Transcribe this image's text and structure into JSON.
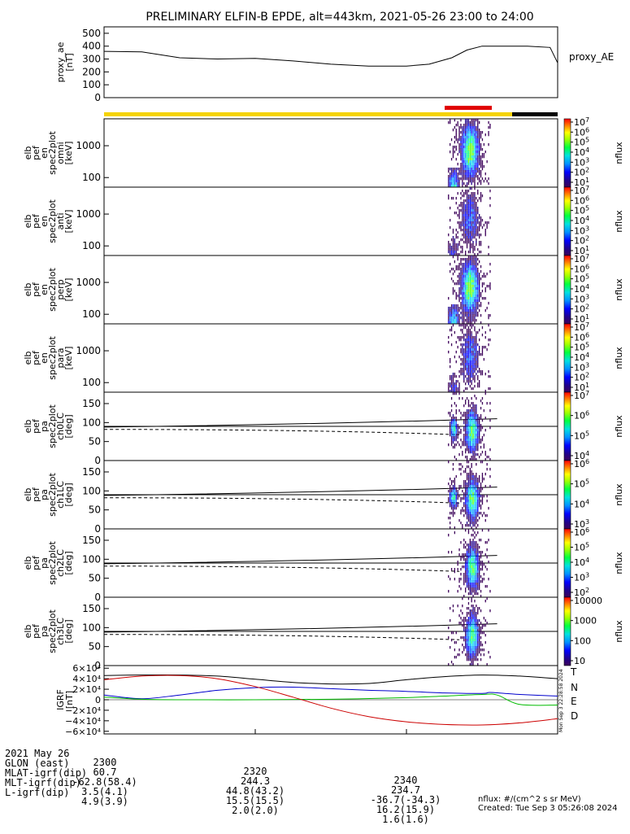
{
  "colors": {
    "sci_zone": "#f5d300",
    "sci_fast": "#e00000",
    "sci_end": "#000000",
    "comp_N": "#0000cc",
    "comp_E": "#00bb00",
    "comp_D": "#cc0000",
    "comp_T": "#000000"
  },
  "chart_data": {
    "type": "heatmap",
    "title": "PRELIMINARY ELFIN-B EPDE, alt=443km, 2021-05-26 23:00 to 24:00",
    "x_range_minutes": [
      2300,
      2400
    ],
    "x_ticks": [
      "2300",
      "2320",
      "2340"
    ],
    "panels": [
      {
        "id": "proxy_ae",
        "type": "line",
        "ylabel": [
          "proxy_ae",
          "[nT]"
        ],
        "right_label": "proxy_AE",
        "ylim": [
          0,
          550
        ],
        "yticks": [
          "500",
          "400",
          "300",
          "200",
          "100",
          "0"
        ],
        "x": [
          2300,
          2305,
          2310,
          2315,
          2320,
          2325,
          2330,
          2335,
          2340,
          2343,
          2346,
          2348,
          2350,
          2353,
          2356,
          2359,
          2360
        ],
        "y": [
          360,
          355,
          310,
          300,
          305,
          285,
          260,
          245,
          245,
          260,
          310,
          370,
          400,
          400,
          400,
          390,
          270
        ]
      },
      {
        "id": "omni",
        "type": "heatmap",
        "ylabel": [
          "elb",
          "pef",
          "en",
          "spec2plot",
          "omni",
          "[keV]"
        ],
        "yticks": [
          "1000",
          "100"
        ],
        "cbar_ticks": [
          "10^7",
          "10^6",
          "10^5",
          "10^4",
          "10^3",
          "10^2",
          "10^1"
        ],
        "cbar_label": "nflux"
      },
      {
        "id": "anti",
        "type": "heatmap",
        "ylabel": [
          "elb",
          "pef",
          "en",
          "spec2plot",
          "anti",
          "[keV]"
        ],
        "yticks": [
          "1000",
          "100"
        ],
        "cbar_ticks": [
          "10^7",
          "10^6",
          "10^5",
          "10^4",
          "10^3",
          "10^2",
          "10^1"
        ],
        "cbar_label": "nflux"
      },
      {
        "id": "perp",
        "type": "heatmap",
        "ylabel": [
          "elb",
          "pef",
          "en",
          "spec2plot",
          "perp",
          "[keV]"
        ],
        "yticks": [
          "1000",
          "100"
        ],
        "cbar_ticks": [
          "10^7",
          "10^6",
          "10^5",
          "10^4",
          "10^3",
          "10^2",
          "10^1"
        ],
        "cbar_label": "nflux"
      },
      {
        "id": "para",
        "type": "heatmap",
        "ylabel": [
          "elb",
          "pef",
          "en",
          "spec2plot",
          "para",
          "[keV]"
        ],
        "yticks": [
          "1000",
          "100"
        ],
        "cbar_ticks": [
          "10^7",
          "10^6",
          "10^5",
          "10^4",
          "10^3",
          "10^2",
          "10^1"
        ],
        "cbar_label": "nflux"
      },
      {
        "id": "ch0LC",
        "type": "heatmap",
        "ylabel": [
          "elb",
          "pef",
          "pa",
          "spec2plot",
          "ch0LC",
          "[deg]"
        ],
        "yticks": [
          "150",
          "100",
          "50",
          "0"
        ],
        "cbar_ticks": [
          "10^7",
          "10^6",
          "10^5",
          "10^4"
        ],
        "cbar_label": "nflux"
      },
      {
        "id": "ch1LC",
        "type": "heatmap",
        "ylabel": [
          "elb",
          "pef",
          "pa",
          "spec2plot",
          "ch1LC",
          "[deg]"
        ],
        "yticks": [
          "150",
          "100",
          "50",
          "0"
        ],
        "cbar_ticks": [
          "10^6",
          "10^5",
          "10^4",
          "10^3"
        ],
        "cbar_label": "nflux"
      },
      {
        "id": "ch2LC",
        "type": "heatmap",
        "ylabel": [
          "elb",
          "pef",
          "pa",
          "spec2plot",
          "ch2LC",
          "[deg]"
        ],
        "yticks": [
          "150",
          "100",
          "50",
          "0"
        ],
        "cbar_ticks": [
          "10^6",
          "10^5",
          "10^4",
          "10^3",
          "10^2"
        ],
        "cbar_label": "nflux"
      },
      {
        "id": "ch3LC",
        "type": "heatmap",
        "ylabel": [
          "elb",
          "pef",
          "pa",
          "spec2plot",
          "ch3LC",
          "[deg]"
        ],
        "yticks": [
          "150",
          "100",
          "50",
          "0"
        ],
        "cbar_ticks": [
          "10000",
          "1000",
          "100",
          "10"
        ],
        "cbar_label": "nflux"
      },
      {
        "id": "igrf",
        "type": "line",
        "ylabel": [
          "IGRF",
          "[nT]"
        ],
        "ylim": [
          -65000,
          65000
        ],
        "yticks": [
          "6×10⁴",
          "4×10⁴",
          "2×10⁴",
          "0",
          "−2×10⁴",
          "−4×10⁴",
          "−6×10⁴"
        ],
        "series": [
          {
            "name": "T",
            "x": [
              2300,
              2305,
              2310,
              2315,
              2320,
              2325,
              2330,
              2335,
              2340,
              2345,
              2350,
              2355,
              2360
            ],
            "y": [
              46000,
              47000,
              47000,
              45000,
              39000,
              33000,
              30000,
              31000,
              38000,
              44000,
              47000,
              45000,
              40000
            ]
          },
          {
            "name": "N",
            "x": [
              2300,
              2305,
              2310,
              2315,
              2320,
              2325,
              2330,
              2335,
              2340,
              2345,
              2350,
              2351,
              2353,
              2355,
              2360
            ],
            "y": [
              9000,
              2000,
              9000,
              18000,
              23000,
              24000,
              21000,
              18000,
              16000,
              13000,
              12000,
              14000,
              12000,
              10000,
              7000
            ]
          },
          {
            "name": "E",
            "x": [
              2300,
              2305,
              2310,
              2320,
              2330,
              2340,
              2345,
              2350,
              2352,
              2355,
              2360
            ],
            "y": [
              5000,
              1000,
              0,
              0,
              1000,
              4000,
              7000,
              10000,
              9000,
              -9000,
              -10000
            ]
          },
          {
            "name": "D",
            "x": [
              2300,
              2305,
              2310,
              2315,
              2320,
              2325,
              2330,
              2335,
              2340,
              2345,
              2350,
              2355,
              2360
            ],
            "y": [
              38000,
              45000,
              46000,
              40000,
              25000,
              5000,
              -16000,
              -32000,
              -42000,
              -47000,
              -48000,
              -44000,
              -36000
            ]
          }
        ]
      }
    ]
  },
  "footer": {
    "date_label": "2021 May 26",
    "rows": [
      {
        "label": "2021 May 26",
        "values": [
          "2300",
          "2320",
          "2340"
        ]
      },
      {
        "label": "GLON (east)",
        "values": [
          "60.7",
          "244.3",
          "234.7"
        ]
      },
      {
        "label": "MLAT-igrf(dip)",
        "values": [
          "-62.8(58.4)",
          "44.8(43.2)",
          "-36.7(-34.3)"
        ]
      },
      {
        "label": "MLT-igrf(dip)",
        "values": [
          "3.5(4.1)",
          "15.5(15.5)",
          "16.2(15.9)"
        ]
      },
      {
        "label": "L-igrf(dip)",
        "values": [
          "4.9(3.9)",
          "2.0(2.0)",
          "1.6(1.6)"
        ]
      }
    ],
    "units_note": "nflux: #/(cm^2 s sr MeV)",
    "created": "Created: Tue Sep  3 05:26:08 2024",
    "vertical_stamp": "Mon Sep  3 22:28:58 2024"
  }
}
